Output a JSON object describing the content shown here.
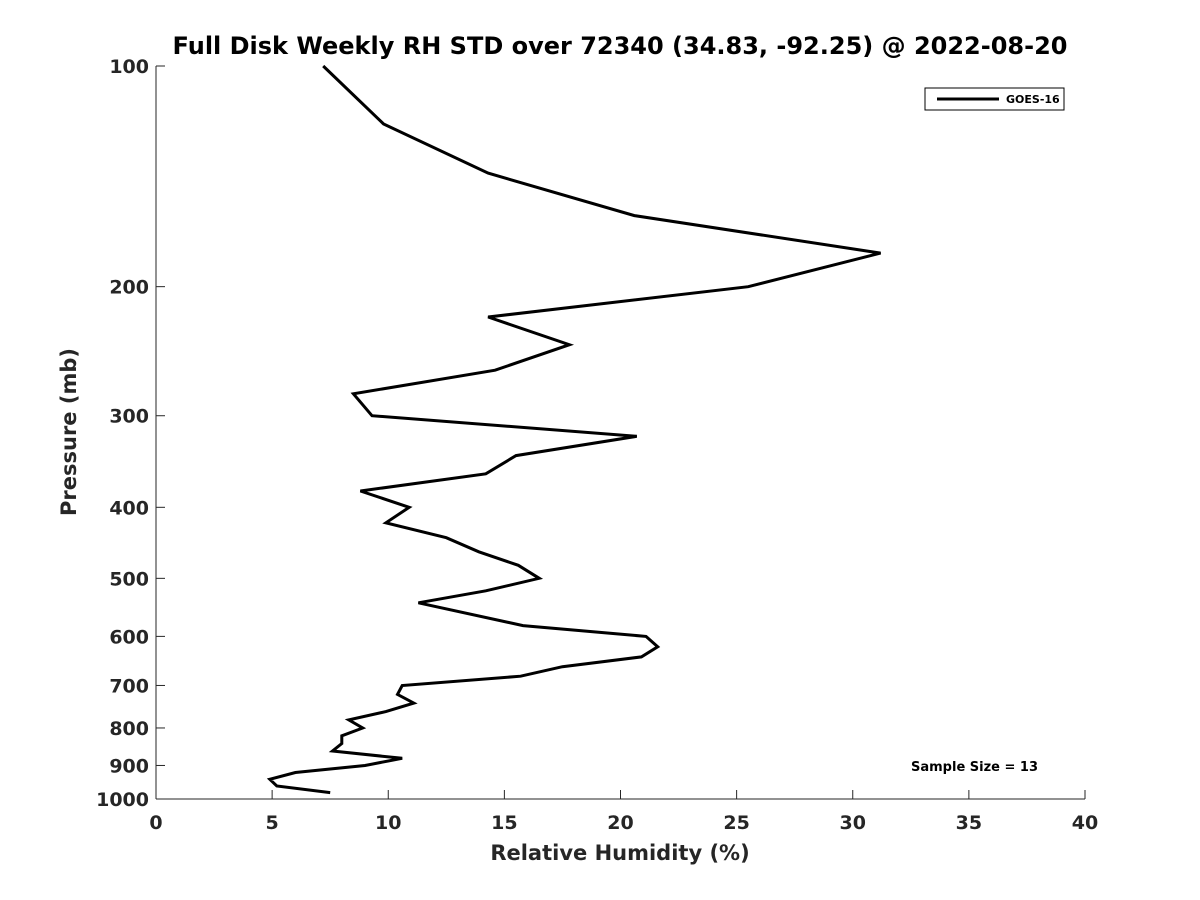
{
  "chart_data": {
    "type": "line",
    "title": "Full Disk Weekly RH STD over 72340 (34.83, -92.25) @ 2022-08-20",
    "xlabel": "Relative Humidity (%)",
    "ylabel": "Pressure (mb)",
    "xlim": [
      0,
      40
    ],
    "ylim": [
      100,
      1000
    ],
    "y_scale": "log",
    "y_reversed": true,
    "x_ticks": [
      "0",
      "5",
      "10",
      "15",
      "20",
      "25",
      "30",
      "35",
      "40"
    ],
    "y_ticks": [
      "100",
      "200",
      "300",
      "400",
      "500",
      "600",
      "700",
      "800",
      "900",
      "1000"
    ],
    "legend_position": "top-right",
    "series": [
      {
        "name": "GOES-16",
        "color": "#000000",
        "x": [
          7.2,
          9.8,
          14.3,
          20.6,
          31.2,
          25.5,
          14.3,
          17.8,
          14.6,
          8.5,
          9.3,
          20.7,
          15.5,
          14.2,
          8.8,
          10.9,
          9.9,
          12.5,
          13.9,
          15.6,
          16.5,
          14.2,
          11.3,
          15.8,
          21.1,
          21.6,
          20.9,
          17.5,
          15.7,
          10.6,
          10.4,
          11.1,
          9.9,
          8.3,
          8.9,
          8.0,
          8.0,
          7.6,
          10.6,
          9.0,
          6.0,
          4.9,
          5.2,
          7.5
        ],
        "y": [
          100,
          120,
          140,
          160,
          180,
          200,
          220,
          240,
          260,
          280,
          300,
          320,
          340,
          360,
          380,
          400,
          420,
          440,
          460,
          480,
          500,
          520,
          540,
          580,
          600,
          620,
          640,
          660,
          680,
          700,
          720,
          740,
          760,
          780,
          800,
          820,
          840,
          860,
          880,
          900,
          920,
          940,
          960,
          980
        ]
      }
    ],
    "annotations": [
      "Sample Size = 13"
    ]
  },
  "colors": {
    "line": "#000000",
    "axis": "#262626",
    "background": "#ffffff"
  }
}
